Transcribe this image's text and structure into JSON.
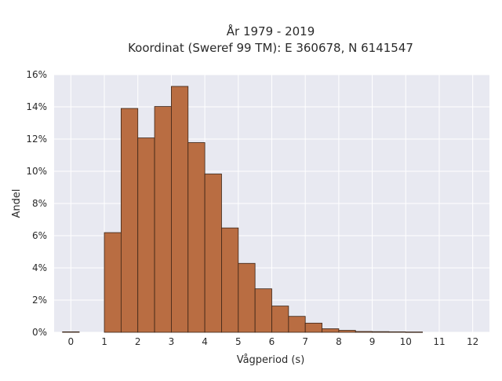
{
  "chart_data": {
    "type": "bar",
    "title": [
      "År 1979 - 2019",
      "Koordinat (Sweref 99 TM): E 360678, N 6141547"
    ],
    "xlabel": "Vågperiod (s)",
    "ylabel": "Andel",
    "xlim": [
      -0.5,
      12.5
    ],
    "ylim": [
      0,
      0.16
    ],
    "x_ticks": [
      0,
      1,
      2,
      3,
      4,
      5,
      6,
      7,
      8,
      9,
      10,
      11,
      12
    ],
    "x_tick_labels": [
      "0",
      "1",
      "2",
      "3",
      "4",
      "5",
      "6",
      "7",
      "8",
      "9",
      "10",
      "11",
      "12"
    ],
    "y_ticks": [
      0,
      0.02,
      0.04,
      0.06,
      0.08,
      0.1,
      0.12,
      0.14,
      0.16
    ],
    "y_tick_labels": [
      "0%",
      "2%",
      "4%",
      "6%",
      "8%",
      "10%",
      "12%",
      "14%",
      "16%"
    ],
    "bin_width": 0.5,
    "bin_starts": [
      -0.25,
      1,
      1.5,
      2,
      2.5,
      3,
      3.5,
      4,
      4.5,
      5,
      5.5,
      6,
      6.5,
      7,
      7.5,
      8,
      8.5,
      9,
      9.5,
      10
    ],
    "values": [
      0.0003,
      0.0619,
      0.139,
      0.1207,
      0.1402,
      0.1527,
      0.1178,
      0.0983,
      0.0648,
      0.0428,
      0.027,
      0.0163,
      0.0099,
      0.0057,
      0.0022,
      0.0012,
      0.0005,
      0.0004,
      0.0003,
      0.0002
    ],
    "grid": true,
    "colors": {
      "bar_fill": "#b96d42",
      "bar_edge": "#3a2416",
      "plot_background": "#e8e9f1",
      "grid": "#ffffff"
    }
  }
}
